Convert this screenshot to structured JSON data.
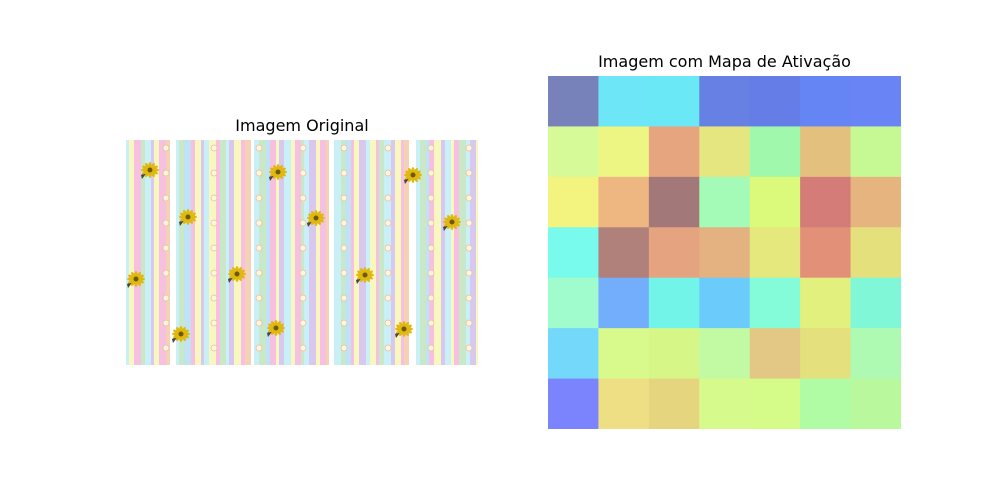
{
  "figure": {
    "left_title": "Imagem Original",
    "right_title": "Imagem com Mapa de Ativação"
  },
  "chart_data": [
    {
      "type": "image",
      "title": "Imagem Original",
      "description_visible": false,
      "stripe_palette": [
        "#c9f0f7",
        "#f8f7c0",
        "#f7bfe0",
        "#c8e8c8",
        "#d8c8f0",
        "#f5d2b5",
        "#ffffff",
        "#bfe3f5"
      ],
      "flower_colors": {
        "petal": "#e0b80f",
        "center": "#6b5a10",
        "leaf": "#444444"
      }
    },
    {
      "type": "heatmap",
      "title": "Imagem com Mapa de Ativação",
      "rows": 7,
      "cols": 7,
      "cell_colors": [
        [
          "#7781ba",
          "#6de6f7",
          "#6be8f5",
          "#6780e4",
          "#657de6",
          "#6585f4",
          "#6884f5"
        ],
        [
          "#d6fa98",
          "#eef683",
          "#e6a47f",
          "#e5e67f",
          "#a0f8ad",
          "#e4c07f",
          "#c6f894"
        ],
        [
          "#f3f37f",
          "#eeb680",
          "#a27878",
          "#a4fbb8",
          "#dbfa7c",
          "#d37c78",
          "#e6b47e"
        ],
        [
          "#78fbec",
          "#b0807b",
          "#e5a47f",
          "#e4b181",
          "#e5e97d",
          "#e39079",
          "#e4e07c"
        ],
        [
          "#a0fbcd",
          "#72aefc",
          "#73f4e9",
          "#6bccfb",
          "#84fcd9",
          "#e2f07d",
          "#80f8d8"
        ],
        [
          "#74d8fa",
          "#d8fa8d",
          "#d6f688",
          "#c2faa3",
          "#e2c884",
          "#e3e07d",
          "#aefab3"
        ],
        [
          "#7b84fc",
          "#efdf84",
          "#e5d57f",
          "#d7fa8c",
          "#d5fc88",
          "#b0fca4",
          "#b9f89c"
        ]
      ]
    }
  ]
}
